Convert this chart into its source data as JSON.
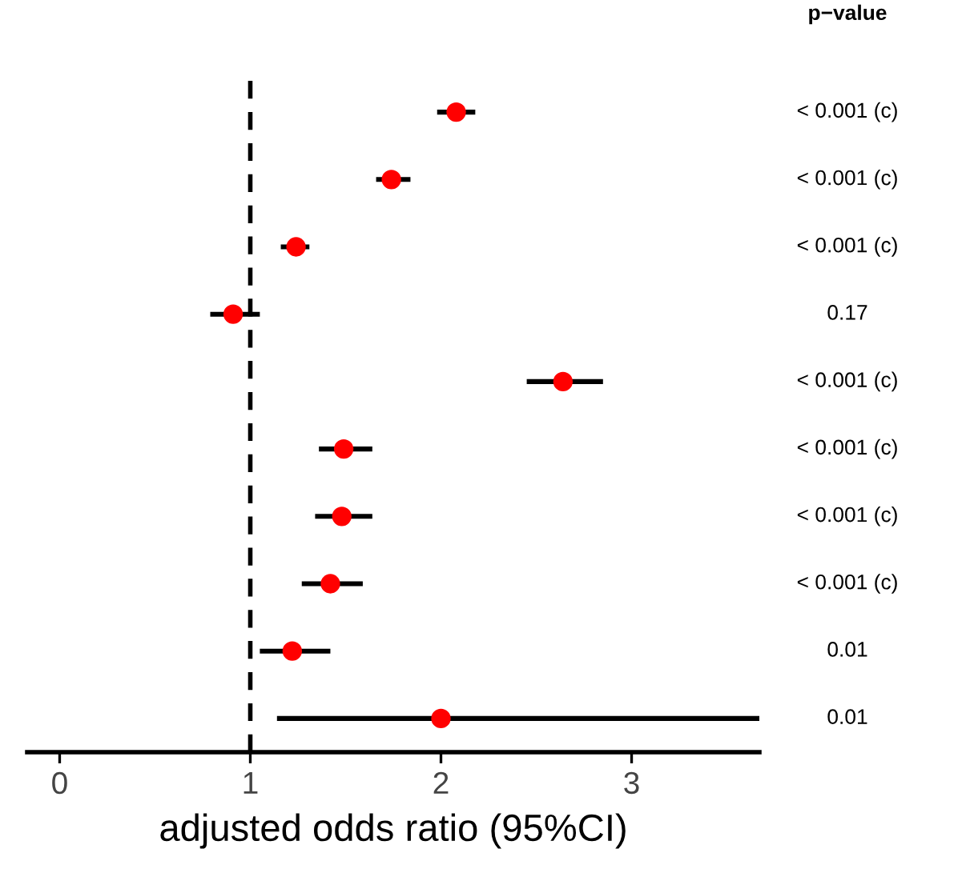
{
  "chart_data": {
    "type": "scatter",
    "orientation": "horizontal",
    "xlabel": "adjusted odds ratio (95%CI)",
    "categories": [
      null,
      null,
      null,
      null,
      null,
      null,
      null,
      null,
      null,
      null
    ],
    "values": [
      2.08,
      1.74,
      1.24,
      0.91,
      2.64,
      1.49,
      1.48,
      1.42,
      1.22,
      2.0
    ],
    "errors": [
      [
        1.98,
        2.18
      ],
      [
        1.66,
        1.84
      ],
      [
        1.16,
        1.31
      ],
      [
        0.79,
        1.05
      ],
      [
        2.45,
        2.85
      ],
      [
        1.36,
        1.64
      ],
      [
        1.34,
        1.64
      ],
      [
        1.27,
        1.59
      ],
      [
        1.05,
        1.42
      ],
      [
        1.14,
        3.67
      ]
    ],
    "color": "#ff0000",
    "marker": "circle",
    "grid": false,
    "legend": false,
    "tick_labels": "x",
    "xlim": [
      -0.17,
      3.67
    ],
    "xticks": [
      0,
      1,
      2,
      3
    ],
    "ref_lines": [
      {
        "axis": "x",
        "value": 1,
        "color": "#000000",
        "line_style": "dashed"
      }
    ],
    "annotations": [
      "p−value",
      "< 0.001 (c)",
      "< 0.001 (c)",
      "< 0.001 (c)",
      "0.17",
      "< 0.001 (c)",
      "< 0.001 (c)",
      "< 0.001 (c)",
      "< 0.001 (c)",
      "0.01",
      "0.01"
    ]
  }
}
